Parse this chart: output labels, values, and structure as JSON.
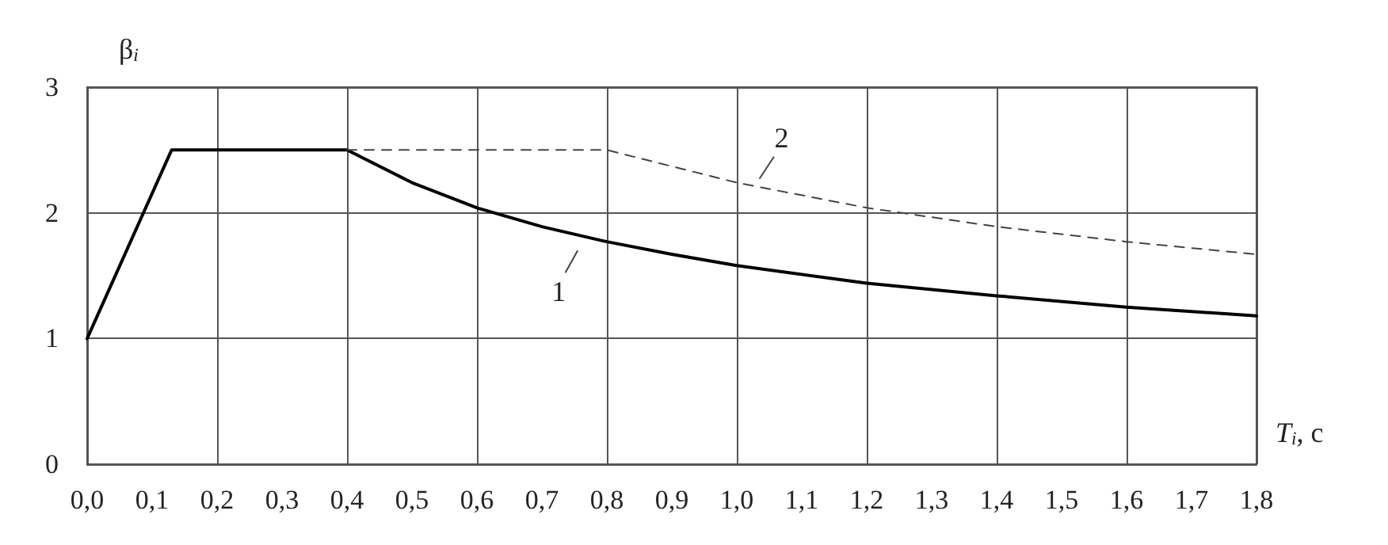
{
  "chart_data": {
    "type": "line",
    "xlabel": "T$_{i}$, c",
    "ylabel": "β$_{i}$",
    "xlim": [
      0,
      1.8
    ],
    "ylim": [
      0,
      3
    ],
    "xticks": [
      {
        "value": 0,
        "label": "0,0"
      },
      {
        "value": 0.1,
        "label": "0,1"
      },
      {
        "value": 0.2,
        "label": "0,2"
      },
      {
        "value": 0.3,
        "label": "0,3"
      },
      {
        "value": 0.4,
        "label": "0,4"
      },
      {
        "value": 0.5,
        "label": "0,5"
      },
      {
        "value": 0.6,
        "label": "0,6"
      },
      {
        "value": 0.7,
        "label": "0,7"
      },
      {
        "value": 0.8,
        "label": "0,8"
      },
      {
        "value": 0.9,
        "label": "0,9"
      },
      {
        "value": 1.0,
        "label": "1,0"
      },
      {
        "value": 1.1,
        "label": "1,1"
      },
      {
        "value": 1.2,
        "label": "1,2"
      },
      {
        "value": 1.3,
        "label": "1,3"
      },
      {
        "value": 1.4,
        "label": "1,4"
      },
      {
        "value": 1.5,
        "label": "1,5"
      },
      {
        "value": 1.6,
        "label": "1,6"
      },
      {
        "value": 1.7,
        "label": "1,7"
      },
      {
        "value": 1.8,
        "label": "1,8"
      }
    ],
    "yticks": [
      0,
      1,
      2,
      3
    ],
    "grid": true,
    "marker": "none",
    "series": [
      {
        "color": "#000000",
        "line_style": "solid",
        "x": [
          0,
          0.13,
          0.4,
          0.5,
          0.6,
          0.7,
          0.8,
          0.9,
          1.0,
          1.2,
          1.4,
          1.6,
          1.8
        ],
        "values": [
          1,
          2.5,
          2.5,
          2.24,
          2.04,
          1.89,
          1.77,
          1.67,
          1.58,
          1.44,
          1.34,
          1.25,
          1.18
        ]
      },
      {
        "color": "#444444",
        "line_style": "dashed",
        "x": [
          0.4,
          0.8,
          1.0,
          1.2,
          1.4,
          1.6,
          1.8
        ],
        "values": [
          2.5,
          2.5,
          2.24,
          2.04,
          1.89,
          1.77,
          1.67
        ]
      }
    ],
    "annotations": [
      {
        "text": "1",
        "x": 0.76,
        "y": 1.75
      },
      {
        "text": "2",
        "x": 1.03,
        "y": 2.22
      }
    ]
  }
}
